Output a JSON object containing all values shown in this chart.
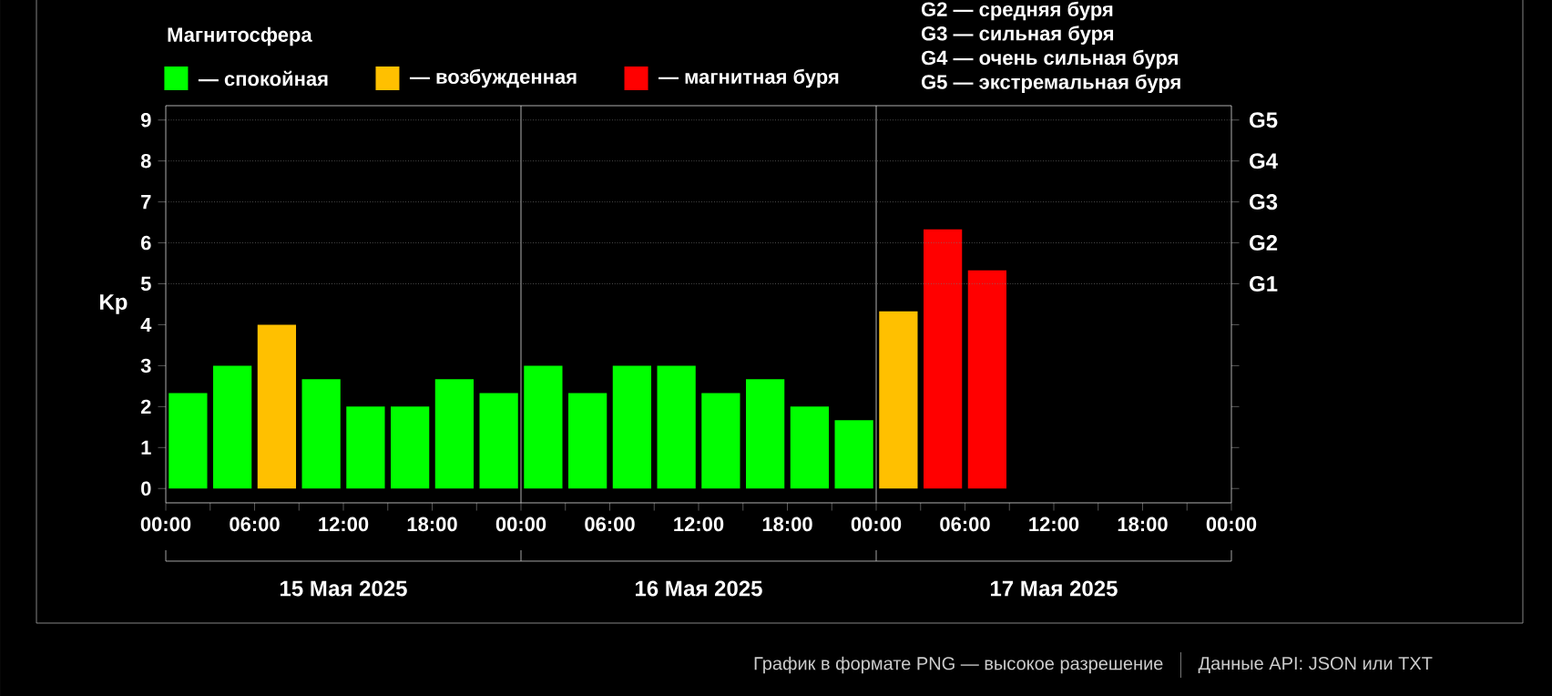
{
  "chart_data": {
    "type": "bar",
    "ylabel": "Kp",
    "legend_title": "Магнитосфера",
    "legend": "top",
    "x": [
      "2025-05-15T01:30",
      "2025-05-15T04:30",
      "2025-05-15T07:30",
      "2025-05-15T10:30",
      "2025-05-15T13:30",
      "2025-05-15T16:30",
      "2025-05-15T19:30",
      "2025-05-15T22:30",
      "2025-05-16T01:30",
      "2025-05-16T04:30",
      "2025-05-16T07:30",
      "2025-05-16T10:30",
      "2025-05-16T13:30",
      "2025-05-16T16:30",
      "2025-05-16T19:30",
      "2025-05-16T22:30",
      "2025-05-17T01:30",
      "2025-05-17T04:30",
      "2025-05-17T07:30"
    ],
    "series": [
      {
        "name": "— спокойная",
        "color": "#00ff00",
        "values": [
          2.33,
          3,
          null,
          2.67,
          2,
          2,
          2.67,
          2.33,
          3,
          2.33,
          3,
          3,
          2.33,
          2.67,
          2,
          1.67,
          null,
          null,
          null
        ]
      },
      {
        "name": "— возбужденная",
        "color": "#ffc000",
        "values": [
          null,
          null,
          4,
          null,
          null,
          null,
          null,
          null,
          null,
          null,
          null,
          null,
          null,
          null,
          null,
          null,
          4.33,
          null,
          null
        ]
      },
      {
        "name": "— магнитная буря",
        "color": "#ff0000",
        "values": [
          null,
          null,
          null,
          null,
          null,
          null,
          null,
          null,
          null,
          null,
          null,
          null,
          null,
          null,
          null,
          null,
          null,
          6.33,
          5.33
        ]
      }
    ],
    "xlim": [
      "2025-05-15T00:00",
      "2025-05-18T00:00"
    ],
    "xticks": [
      {
        "value": "2025-05-15T00:00",
        "label": "00:00"
      },
      {
        "value": "2025-05-15T03:00",
        "label": null
      },
      {
        "value": "2025-05-15T06:00",
        "label": "06:00"
      },
      {
        "value": "2025-05-15T09:00",
        "label": null
      },
      {
        "value": "2025-05-15T12:00",
        "label": "12:00"
      },
      {
        "value": "2025-05-15T15:00",
        "label": null
      },
      {
        "value": "2025-05-15T18:00",
        "label": "18:00"
      },
      {
        "value": "2025-05-15T21:00",
        "label": null
      },
      {
        "value": "2025-05-16T00:00",
        "label": "00:00"
      },
      {
        "value": "2025-05-16T03:00",
        "label": null
      },
      {
        "value": "2025-05-16T06:00",
        "label": "06:00"
      },
      {
        "value": "2025-05-16T09:00",
        "label": null
      },
      {
        "value": "2025-05-16T12:00",
        "label": "12:00"
      },
      {
        "value": "2025-05-16T15:00",
        "label": null
      },
      {
        "value": "2025-05-16T18:00",
        "label": "18:00"
      },
      {
        "value": "2025-05-16T21:00",
        "label": null
      },
      {
        "value": "2025-05-17T00:00",
        "label": "00:00"
      },
      {
        "value": "2025-05-17T03:00",
        "label": null
      },
      {
        "value": "2025-05-17T06:00",
        "label": "06:00"
      },
      {
        "value": "2025-05-17T09:00",
        "label": null
      },
      {
        "value": "2025-05-17T12:00",
        "label": "12:00"
      },
      {
        "value": "2025-05-17T15:00",
        "label": null
      },
      {
        "value": "2025-05-17T18:00",
        "label": "18:00"
      },
      {
        "value": "2025-05-17T21:00",
        "label": null
      },
      {
        "value": "2025-05-18T00:00",
        "label": "00:00"
      }
    ],
    "ylim": [
      -0.35,
      9.35
    ],
    "yticks": [
      0,
      1,
      2,
      3,
      4,
      5,
      6,
      7,
      8,
      9
    ],
    "ref_lines": [
      {
        "axis": "x",
        "value": "2025-05-16T00:00",
        "color": "#dddddd"
      },
      {
        "axis": "x",
        "value": "2025-05-17T00:00",
        "color": "#dddddd"
      },
      {
        "axis": "y",
        "value": 5,
        "label": "G1",
        "color": "#777777",
        "line_style": "dotted"
      },
      {
        "axis": "y",
        "value": 6,
        "label": "G2",
        "color": "#777777",
        "line_style": "dotted"
      },
      {
        "axis": "y",
        "value": 7,
        "label": "G3",
        "color": "#777777",
        "line_style": "dotted"
      },
      {
        "axis": "y",
        "value": 8,
        "label": "G4",
        "color": "#777777",
        "line_style": "dotted"
      },
      {
        "axis": "y",
        "value": 9,
        "label": "G5",
        "color": "#777777",
        "line_style": "dotted"
      }
    ],
    "annotations": [
      "15 Мая 2025",
      "16 Мая 2025",
      "17 Мая 2025",
      "G2 — средняя буря",
      "G3 — сильная буря",
      "G4 — очень сильная буря",
      "G5 — экстремальная буря",
      "График в формате PNG — высокое разрешение",
      "Данные API: JSON или TXT"
    ]
  }
}
